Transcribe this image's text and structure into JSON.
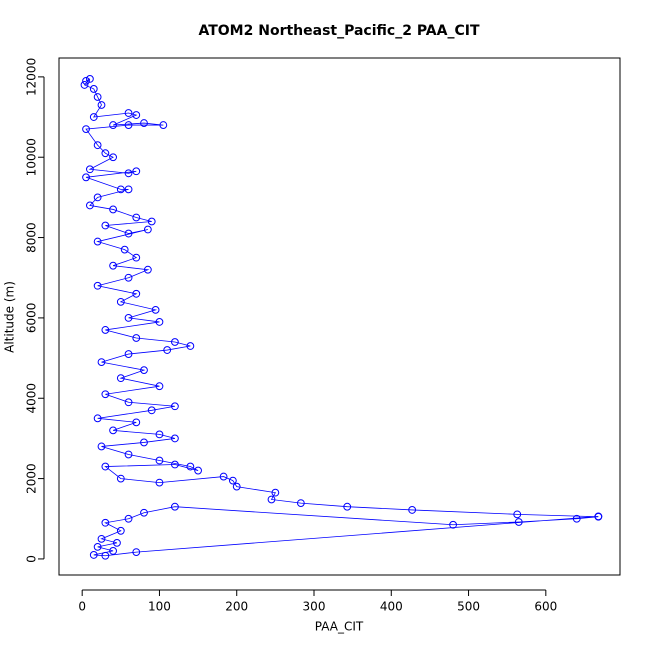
{
  "chart_data": {
    "type": "scatter-line",
    "title": "ATOM2 Northeast_Pacific_2 PAA_CIT",
    "x_label": "PAA_CIT",
    "y_label": "Altitude (m)",
    "color": "#0000ff",
    "xlim": [
      -30,
      696
    ],
    "ylim": [
      -400,
      12470
    ],
    "xticks": [
      0,
      100,
      200,
      300,
      400,
      500,
      600
    ],
    "yticks": [
      0,
      2000,
      4000,
      6000,
      8000,
      10000,
      12000
    ],
    "grid": false,
    "x": [
      5,
      10,
      3,
      15,
      20,
      25,
      15,
      60,
      70,
      40,
      80,
      105,
      60,
      5,
      20,
      30,
      40,
      10,
      60,
      70,
      5,
      50,
      60,
      20,
      10,
      40,
      70,
      90,
      30,
      60,
      85,
      20,
      55,
      70,
      40,
      85,
      60,
      20,
      70,
      50,
      95,
      60,
      100,
      30,
      70,
      120,
      140,
      110,
      60,
      25,
      80,
      50,
      100,
      30,
      60,
      120,
      90,
      20,
      70,
      40,
      100,
      120,
      80,
      25,
      60,
      100,
      140,
      150,
      120,
      30,
      50,
      100,
      183,
      195,
      200,
      250,
      245,
      283,
      343,
      427,
      563,
      668,
      640,
      565,
      480,
      120,
      80,
      60,
      30,
      50,
      25,
      45,
      20,
      40,
      15,
      30,
      70,
      668
    ],
    "values": [
      11900,
      11950,
      11800,
      11700,
      11500,
      11300,
      11000,
      11100,
      11050,
      10800,
      10850,
      10800,
      10800,
      10700,
      10300,
      10100,
      10000,
      9700,
      9600,
      9650,
      9500,
      9200,
      9200,
      9000,
      8800,
      8700,
      8500,
      8400,
      8300,
      8100,
      8200,
      7900,
      7700,
      7500,
      7300,
      7200,
      7000,
      6800,
      6600,
      6400,
      6200,
      6000,
      5900,
      5700,
      5500,
      5400,
      5300,
      5200,
      5100,
      4900,
      4700,
      4500,
      4300,
      4100,
      3900,
      3800,
      3700,
      3500,
      3400,
      3200,
      3100,
      3000,
      2900,
      2800,
      2600,
      2450,
      2300,
      2200,
      2350,
      2300,
      2000,
      1900,
      2050,
      1950,
      1800,
      1650,
      1480,
      1390,
      1300,
      1220,
      1110,
      1050,
      1000,
      920,
      850,
      1300,
      1150,
      1000,
      900,
      700,
      500,
      400,
      300,
      200,
      100,
      80,
      170,
      1060
    ]
  }
}
